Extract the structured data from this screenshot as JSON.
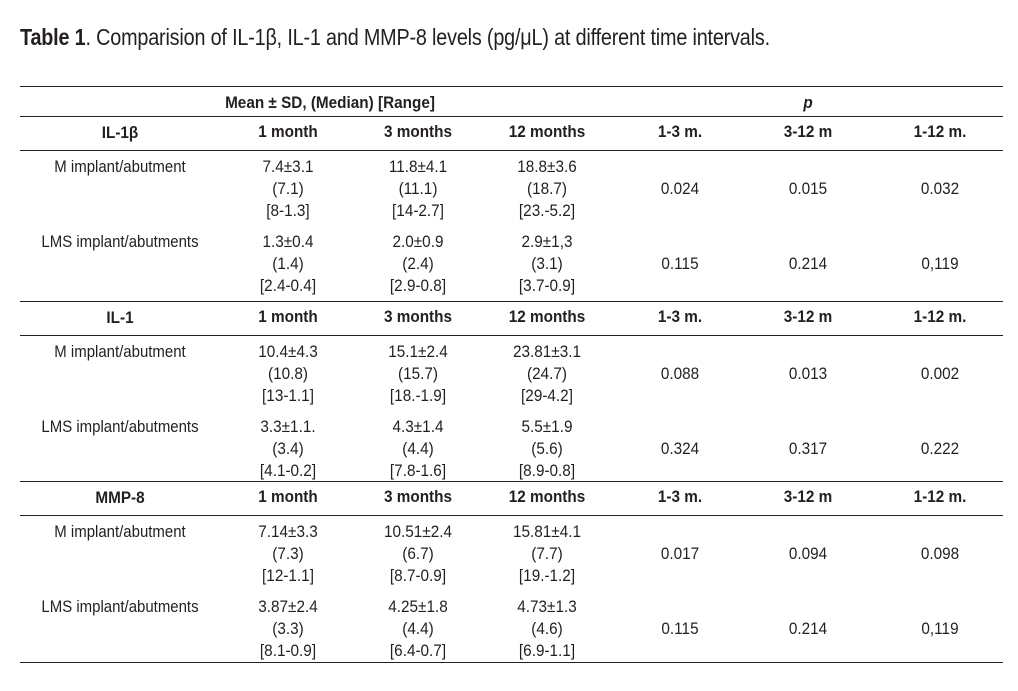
{
  "caption": {
    "label": "Table 1",
    "text": ". Comparision of IL-1β, IL-1 and MMP-8 levels (pg/μL) at different time intervals."
  },
  "header": {
    "group_label": "Mean ± SD, (Median) [Range]",
    "p_label": "p"
  },
  "columns": [
    "1 month",
    "3 months",
    "12 months",
    "1-3 m.",
    "3-12 m",
    "1-12 m."
  ],
  "sections": [
    {
      "name": "IL-1β",
      "rows": [
        {
          "label": "M implant/abutment",
          "m1": [
            "7.4±3.1",
            "(7.1)",
            "[8-1.3]"
          ],
          "m3": [
            "11.8±4.1",
            "(11.1)",
            "[14-2.7]"
          ],
          "m12": [
            "18.8±3.6",
            "(18.7)",
            "[23.-5.2]"
          ],
          "p": [
            "0.024",
            "0.015",
            "0.032"
          ]
        },
        {
          "label": "LMS implant/abutments",
          "m1": [
            "1.3±0.4",
            "(1.4)",
            "[2.4-0.4]"
          ],
          "m3": [
            "2.0±0.9",
            "(2.4)",
            "[2.9-0.8]"
          ],
          "m12": [
            "2.9±1,3",
            "(3.1)",
            "[3.7-0.9]"
          ],
          "p": [
            "0.115",
            "0.214",
            "0,119"
          ]
        }
      ]
    },
    {
      "name": "IL-1",
      "rows": [
        {
          "label": "M implant/abutment",
          "m1": [
            "10.4±4.3",
            "(10.8)",
            "[13-1.1]"
          ],
          "m3": [
            "15.1±2.4",
            "(15.7)",
            "[18.-1.9]"
          ],
          "m12": [
            "23.81±3.1",
            "(24.7)",
            "[29-4.2]"
          ],
          "p": [
            "0.088",
            "0.013",
            "0.002"
          ]
        },
        {
          "label": "LMS implant/abutments",
          "m1": [
            "3.3±1.1.",
            "(3.4)",
            "[4.1-0.2]"
          ],
          "m3": [
            "4.3±1.4",
            "(4.4)",
            "[7.8-1.6]"
          ],
          "m12": [
            "5.5±1.9",
            "(5.6)",
            "[8.9-0.8]"
          ],
          "p": [
            "0.324",
            "0.317",
            "0.222"
          ]
        }
      ]
    },
    {
      "name": "MMP-8",
      "rows": [
        {
          "label": "M implant/abutment",
          "m1": [
            "7.14±3.3",
            "(7.3)",
            "[12-1.1]"
          ],
          "m3": [
            "10.51±2.4",
            "(6.7)",
            "[8.7-0.9]"
          ],
          "m12": [
            "15.81±4.1",
            "(7.7)",
            "[19.-1.2]"
          ],
          "p": [
            "0.017",
            "0.094",
            "0.098"
          ]
        },
        {
          "label": "LMS implant/abutments",
          "m1": [
            "3.87±2.4",
            "(3.3)",
            "[8.1-0.9]"
          ],
          "m3": [
            "4.25±1.8",
            "(4.4)",
            "[6.4-0.7]"
          ],
          "m12": [
            "4.73±1.3",
            "(4.6)",
            "[6.9-1.1]"
          ],
          "p": [
            "0.115",
            "0.214",
            "0,119"
          ]
        }
      ]
    }
  ]
}
